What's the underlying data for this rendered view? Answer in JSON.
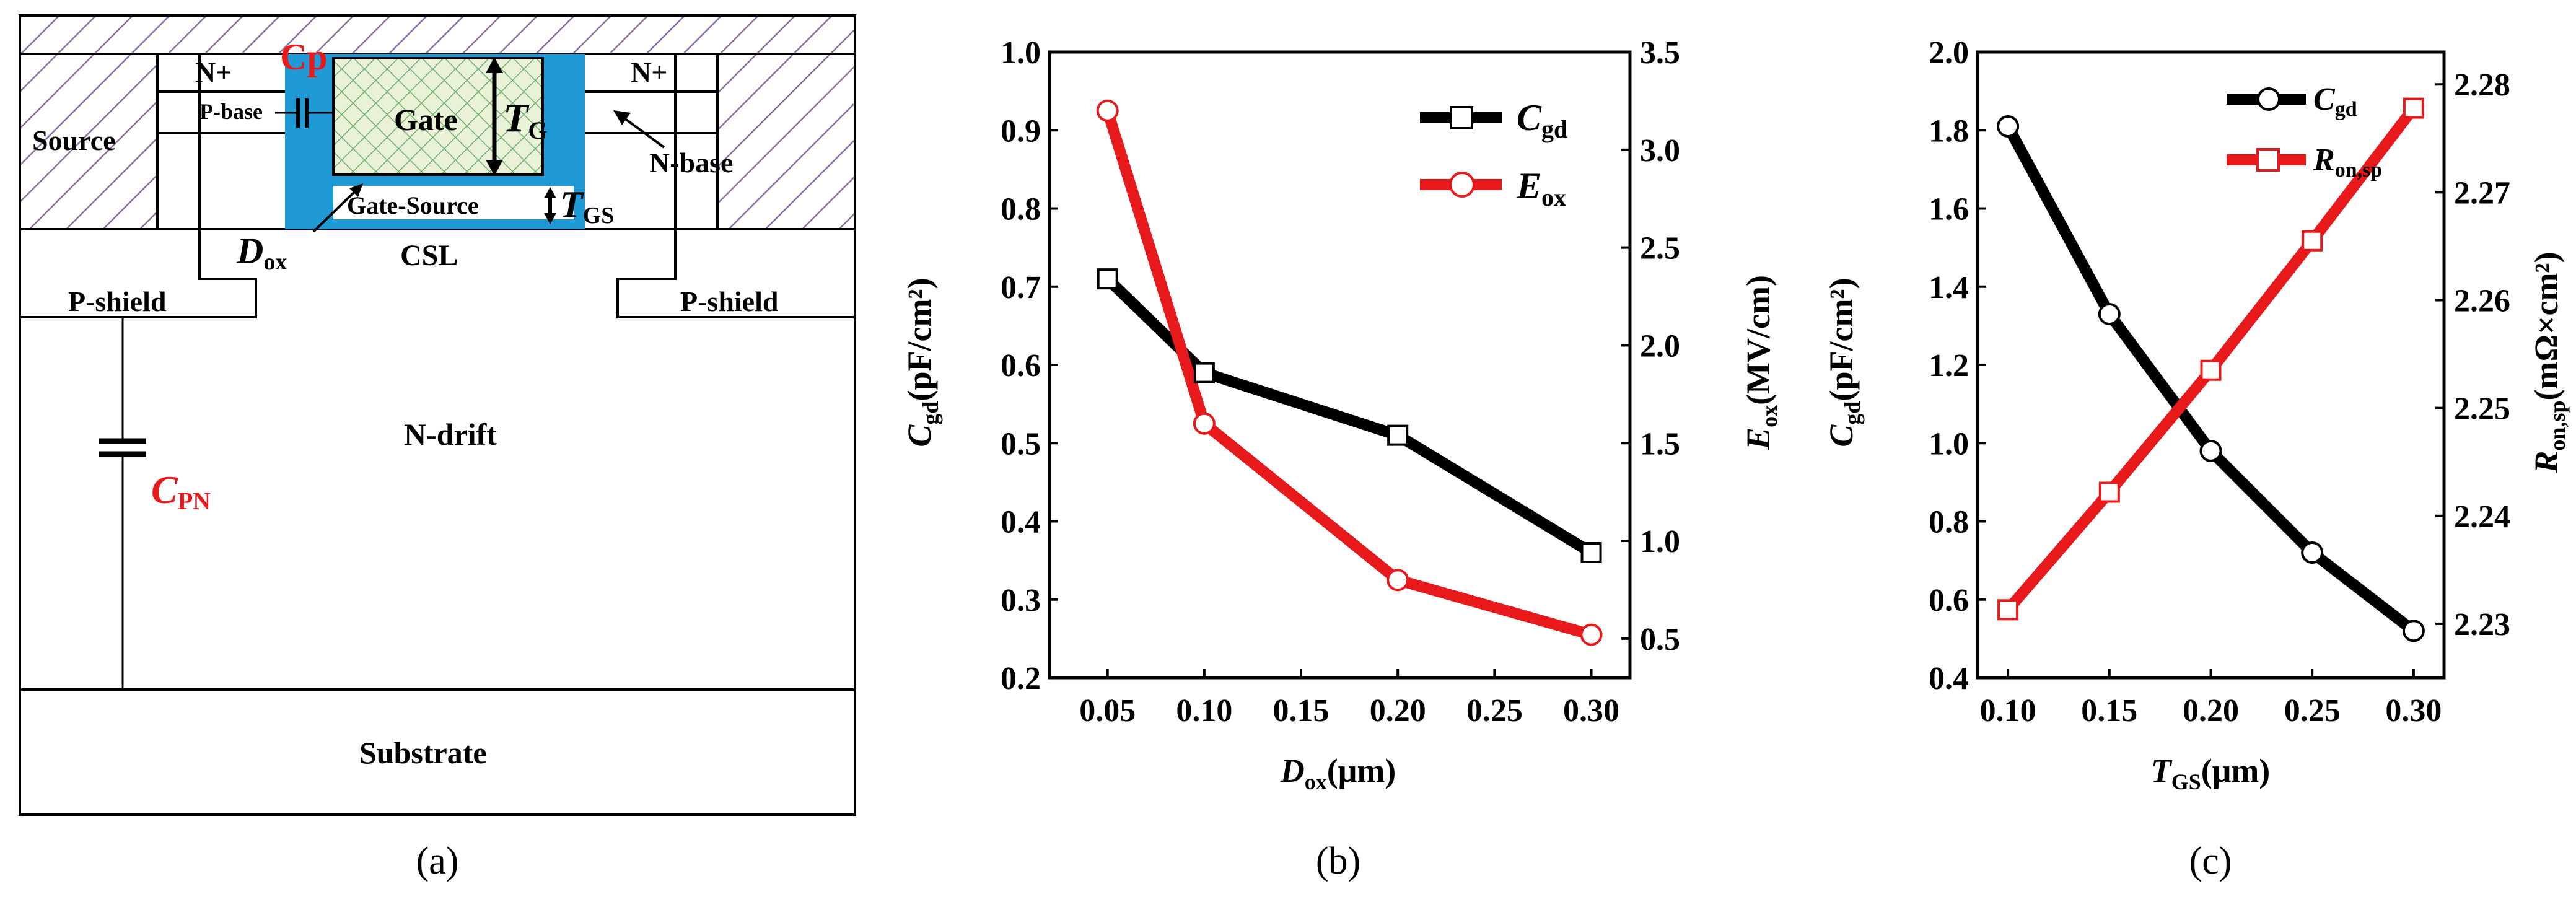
{
  "panels": {
    "a": "(a)",
    "b": "(b)",
    "c": "(c)"
  },
  "diagram": {
    "source": "Source",
    "n_plus_left": "N+",
    "n_plus_right": "N+",
    "cp_label": "Cp",
    "p_base": "P-base",
    "gate": "Gate",
    "tg_main": "T",
    "tg_sub": "G",
    "n_base": "N-base",
    "gate_source": "Gate-Source",
    "tgs_main": "T",
    "tgs_sub": "GS",
    "dox_main": "D",
    "dox_sub": "ox",
    "csl": "CSL",
    "p_shield_left": "P-shield",
    "p_shield_right": "P-shield",
    "n_drift": "N-drift",
    "cpn_main": "C",
    "cpn_sub": "PN",
    "substrate": "Substrate"
  },
  "colors": {
    "black": "#000000",
    "red": "#e8191b",
    "oxide": "#1f9ad6",
    "hatch": "#8f6fa0",
    "gate_fill": "#e9f2d6",
    "gate_grid": "#6fb06f"
  },
  "chart_data": [
    {
      "type": "line",
      "panel": "b",
      "x": [
        0.05,
        0.1,
        0.2,
        0.3
      ],
      "xticks": [
        "0.05",
        "0.10",
        "0.15",
        "0.20",
        "0.25",
        "0.30"
      ],
      "xlabel_main": "D",
      "xlabel_sub": "ox",
      "xlabel_unit": "(μm)",
      "ylim_left": [
        0.2,
        1.0
      ],
      "yticks_left": [
        "0.2",
        "0.3",
        "0.4",
        "0.5",
        "0.6",
        "0.7",
        "0.8",
        "0.9",
        "1.0"
      ],
      "ylabel_left_main": "C",
      "ylabel_left_sub": "gd",
      "ylabel_left_unit": "(pF/cm²)",
      "ylim_right": [
        0.3,
        3.5
      ],
      "yticks_right": [
        "0.5",
        "1.0",
        "1.5",
        "2.0",
        "2.5",
        "3.0",
        "3.5"
      ],
      "ylabel_right_main": "E",
      "ylabel_right_sub": "ox",
      "ylabel_right_unit": "(MV/cm)",
      "series": [
        {
          "name_main": "C",
          "name_sub": "gd",
          "axis": "left",
          "marker": "square",
          "color": "#000000",
          "values": [
            0.71,
            0.59,
            0.51,
            0.36
          ]
        },
        {
          "name_main": "E",
          "name_sub": "ox",
          "axis": "right",
          "marker": "circle",
          "color": "#e8191b",
          "values": [
            3.2,
            1.6,
            0.8,
            0.52
          ]
        }
      ]
    },
    {
      "type": "line",
      "panel": "c",
      "x": [
        0.1,
        0.15,
        0.2,
        0.25,
        0.3
      ],
      "xticks": [
        "0.10",
        "0.15",
        "0.20",
        "0.25",
        "0.30"
      ],
      "xlabel_main": "T",
      "xlabel_sub": "GS",
      "xlabel_unit": "(μm)",
      "ylim_left": [
        0.4,
        2.0
      ],
      "yticks_left": [
        "0.4",
        "0.6",
        "0.8",
        "1.0",
        "1.2",
        "1.4",
        "1.6",
        "1.8",
        "2.0"
      ],
      "ylabel_left_main": "C",
      "ylabel_left_sub": "gd",
      "ylabel_left_unit": "(pF/cm²)",
      "ylim_right": [
        2.225,
        2.283
      ],
      "yticks_right": [
        "2.23",
        "2.24",
        "2.25",
        "2.26",
        "2.27",
        "2.28"
      ],
      "ylabel_right_main": "R",
      "ylabel_right_sub": "on,sp",
      "ylabel_right_unit": "(mΩ×cm²)",
      "series": [
        {
          "name_main": "C",
          "name_sub": "gd",
          "axis": "left",
          "marker": "circle",
          "color": "#000000",
          "values": [
            1.81,
            1.33,
            0.98,
            0.72,
            0.52
          ]
        },
        {
          "name_main": "R",
          "name_sub": "on,sp",
          "axis": "right",
          "marker": "square",
          "color": "#e8191b",
          "values": [
            2.2313,
            2.2422,
            2.2535,
            2.2655,
            2.2778
          ]
        }
      ]
    }
  ]
}
